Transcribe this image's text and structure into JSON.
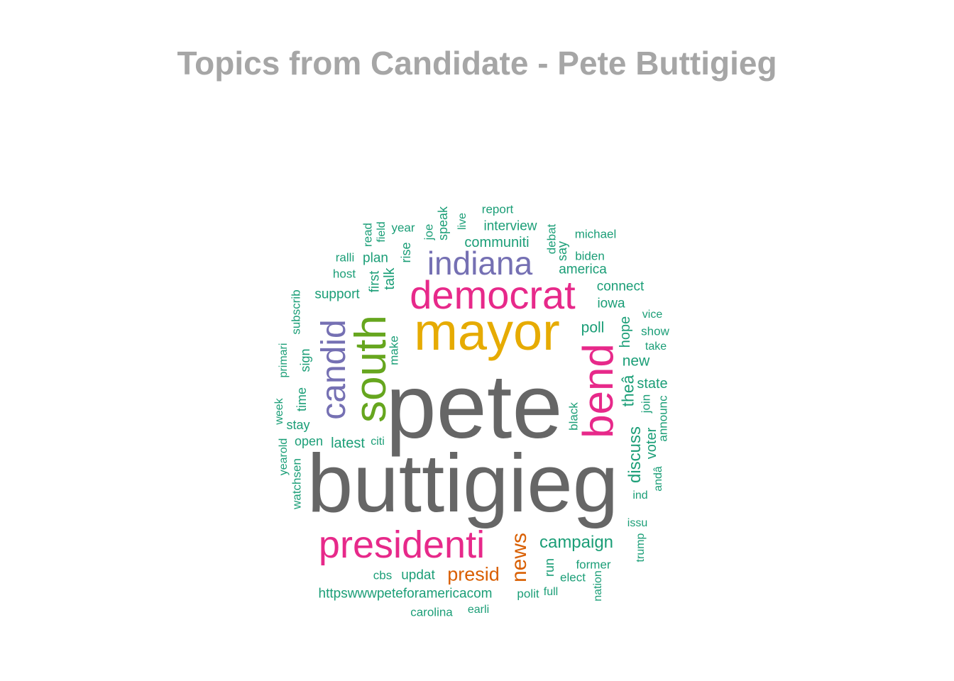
{
  "title": "Topics from Candidate - Pete Buttigieg",
  "colors": {
    "title": "#a6a6a6",
    "c_gray": "#666666",
    "c_pink": "#e7298a",
    "c_gold": "#e6ab02",
    "c_green": "#66a61e",
    "c_purple": "#7570b3",
    "c_orange": "#d95f02",
    "c_teal": "#1b9e77"
  },
  "words": [
    {
      "text": "pete",
      "color": "c_gray",
      "rot": false
    },
    {
      "text": "buttigieg",
      "color": "c_gray",
      "rot": false
    },
    {
      "text": "mayor",
      "color": "c_gold",
      "rot": false
    },
    {
      "text": "democrat",
      "color": "c_pink",
      "rot": false
    },
    {
      "text": "presidenti",
      "color": "c_pink",
      "rot": false
    },
    {
      "text": "indiana",
      "color": "c_purple",
      "rot": false
    },
    {
      "text": "south",
      "color": "c_green",
      "rot": true
    },
    {
      "text": "bend",
      "color": "c_pink",
      "rot": true
    },
    {
      "text": "candid",
      "color": "c_purple",
      "rot": true
    },
    {
      "text": "news",
      "color": "c_orange",
      "rot": true
    },
    {
      "text": "presid",
      "color": "c_orange",
      "rot": false
    },
    {
      "text": "campaign",
      "color": "c_teal",
      "rot": false
    },
    {
      "text": "communiti",
      "color": "c_teal",
      "rot": false
    },
    {
      "text": "america",
      "color": "c_teal",
      "rot": false
    },
    {
      "text": "interview",
      "color": "c_teal",
      "rot": false
    },
    {
      "text": "report",
      "color": "c_teal",
      "rot": false
    },
    {
      "text": "michael",
      "color": "c_teal",
      "rot": false
    },
    {
      "text": "biden",
      "color": "c_teal",
      "rot": false
    },
    {
      "text": "connect",
      "color": "c_teal",
      "rot": false
    },
    {
      "text": "iowa",
      "color": "c_teal",
      "rot": false
    },
    {
      "text": "poll",
      "color": "c_teal",
      "rot": false
    },
    {
      "text": "new",
      "color": "c_teal",
      "rot": false
    },
    {
      "text": "state",
      "color": "c_teal",
      "rot": false
    },
    {
      "text": "vice",
      "color": "c_teal",
      "rot": false
    },
    {
      "text": "show",
      "color": "c_teal",
      "rot": false
    },
    {
      "text": "take",
      "color": "c_teal",
      "rot": false
    },
    {
      "text": "support",
      "color": "c_teal",
      "rot": false
    },
    {
      "text": "plan",
      "color": "c_teal",
      "rot": false
    },
    {
      "text": "ralli",
      "color": "c_teal",
      "rot": false
    },
    {
      "text": "host",
      "color": "c_teal",
      "rot": false
    },
    {
      "text": "year",
      "color": "c_teal",
      "rot": false
    },
    {
      "text": "stay",
      "color": "c_teal",
      "rot": false
    },
    {
      "text": "open",
      "color": "c_teal",
      "rot": false
    },
    {
      "text": "latest",
      "color": "c_teal",
      "rot": false
    },
    {
      "text": "citi",
      "color": "c_teal",
      "rot": false
    },
    {
      "text": "ind",
      "color": "c_teal",
      "rot": false
    },
    {
      "text": "issu",
      "color": "c_teal",
      "rot": false
    },
    {
      "text": "former",
      "color": "c_teal",
      "rot": false
    },
    {
      "text": "elect",
      "color": "c_teal",
      "rot": false
    },
    {
      "text": "cbs",
      "color": "c_teal",
      "rot": false
    },
    {
      "text": "updat",
      "color": "c_teal",
      "rot": false
    },
    {
      "text": "httpswwwpeteforamericacom",
      "color": "c_teal",
      "rot": false
    },
    {
      "text": "polit",
      "color": "c_teal",
      "rot": false
    },
    {
      "text": "full",
      "color": "c_teal",
      "rot": false
    },
    {
      "text": "carolina",
      "color": "c_teal",
      "rot": false
    },
    {
      "text": "earli",
      "color": "c_teal",
      "rot": false
    },
    {
      "text": "read",
      "color": "c_teal",
      "rot": true
    },
    {
      "text": "field",
      "color": "c_teal",
      "rot": true
    },
    {
      "text": "joe",
      "color": "c_teal",
      "rot": true
    },
    {
      "text": "speak",
      "color": "c_teal",
      "rot": true
    },
    {
      "text": "live",
      "color": "c_teal",
      "rot": true
    },
    {
      "text": "rise",
      "color": "c_teal",
      "rot": true
    },
    {
      "text": "debat",
      "color": "c_teal",
      "rot": true
    },
    {
      "text": "say",
      "color": "c_teal",
      "rot": true
    },
    {
      "text": "first",
      "color": "c_teal",
      "rot": true
    },
    {
      "text": "talk",
      "color": "c_teal",
      "rot": true
    },
    {
      "text": "subscrib",
      "color": "c_teal",
      "rot": true
    },
    {
      "text": "primari",
      "color": "c_teal",
      "rot": true
    },
    {
      "text": "sign",
      "color": "c_teal",
      "rot": true
    },
    {
      "text": "make",
      "color": "c_teal",
      "rot": true
    },
    {
      "text": "time",
      "color": "c_teal",
      "rot": true
    },
    {
      "text": "week",
      "color": "c_teal",
      "rot": true
    },
    {
      "text": "yearold",
      "color": "c_teal",
      "rot": true
    },
    {
      "text": "watchsen",
      "color": "c_teal",
      "rot": true
    },
    {
      "text": "hope",
      "color": "c_teal",
      "rot": true
    },
    {
      "text": "theâ",
      "color": "c_teal",
      "rot": true
    },
    {
      "text": "join",
      "color": "c_teal",
      "rot": true
    },
    {
      "text": "announc",
      "color": "c_teal",
      "rot": true
    },
    {
      "text": "black",
      "color": "c_teal",
      "rot": true
    },
    {
      "text": "discuss",
      "color": "c_teal",
      "rot": true
    },
    {
      "text": "voter",
      "color": "c_teal",
      "rot": true
    },
    {
      "text": "andâ",
      "color": "c_teal",
      "rot": true
    },
    {
      "text": "trump",
      "color": "c_teal",
      "rot": true
    },
    {
      "text": "run",
      "color": "c_teal",
      "rot": true
    },
    {
      "text": "nation",
      "color": "c_teal",
      "rot": true
    }
  ]
}
